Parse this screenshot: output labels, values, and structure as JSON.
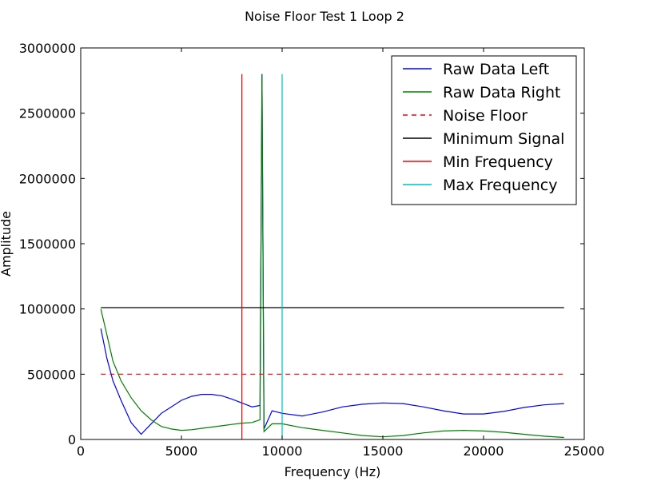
{
  "chart_data": {
    "type": "line",
    "title": "Noise Floor Test 1 Loop 2",
    "xlabel": "Frequency (Hz)",
    "ylabel": "Amplitude",
    "xlim": [
      0,
      25000
    ],
    "ylim": [
      0,
      3000000
    ],
    "xticks": [
      0,
      5000,
      10000,
      15000,
      20000,
      25000
    ],
    "xtick_labels": [
      "0",
      "5000",
      "10000",
      "15000",
      "20000",
      "25000"
    ],
    "yticks": [
      0,
      500000,
      1000000,
      1500000,
      2000000,
      2500000,
      3000000
    ],
    "ytick_labels": [
      "0",
      "500000",
      "1000000",
      "1500000",
      "2000000",
      "2500000",
      "3000000"
    ],
    "grid": false,
    "legend_position": "top-right",
    "series": [
      {
        "name": "Raw Data Left",
        "color": "#0000ff",
        "style": "solid",
        "x": [
          1000,
          1300,
          1600,
          2000,
          2500,
          3000,
          3500,
          4000,
          4500,
          5000,
          5500,
          6000,
          6500,
          7000,
          7500,
          8000,
          8500,
          8900,
          9000,
          9100,
          9500,
          10000,
          11000,
          12000,
          13000,
          14000,
          15000,
          16000,
          17000,
          18000,
          19000,
          20000,
          21000,
          22000,
          23000,
          24000
        ],
        "y": [
          850000,
          620000,
          450000,
          300000,
          130000,
          40000,
          120000,
          200000,
          250000,
          300000,
          330000,
          345000,
          345000,
          335000,
          310000,
          280000,
          250000,
          260000,
          2800000,
          80000,
          220000,
          200000,
          180000,
          210000,
          250000,
          270000,
          280000,
          275000,
          250000,
          220000,
          195000,
          195000,
          215000,
          245000,
          265000,
          275000
        ]
      },
      {
        "name": "Raw Data Right",
        "color": "#008000",
        "style": "solid",
        "x": [
          1000,
          1300,
          1600,
          2000,
          2500,
          3000,
          3500,
          4000,
          4500,
          5000,
          5500,
          6000,
          6500,
          7000,
          7500,
          8000,
          8500,
          8900,
          9000,
          9100,
          9500,
          10000,
          11000,
          12000,
          13000,
          14000,
          15000,
          16000,
          17000,
          18000,
          19000,
          20000,
          21000,
          22000,
          23000,
          24000
        ],
        "y": [
          1000000,
          800000,
          600000,
          450000,
          320000,
          220000,
          150000,
          100000,
          80000,
          70000,
          75000,
          85000,
          95000,
          105000,
          115000,
          125000,
          130000,
          150000,
          2800000,
          60000,
          120000,
          120000,
          90000,
          70000,
          50000,
          30000,
          20000,
          30000,
          50000,
          65000,
          70000,
          65000,
          55000,
          40000,
          25000,
          15000
        ]
      },
      {
        "name": "Noise Floor",
        "color": "#ff0000",
        "style": "dashed",
        "x": [
          1000,
          24000
        ],
        "y": [
          500000,
          500000
        ]
      },
      {
        "name": "Minimum Signal",
        "color": "#000000",
        "style": "solid",
        "x": [
          1000,
          24000
        ],
        "y": [
          1010000,
          1010000
        ]
      },
      {
        "name": "Min Frequency",
        "color": "#ff0000",
        "style": "solid",
        "x": [
          8000,
          8000
        ],
        "y": [
          0,
          2800000
        ]
      },
      {
        "name": "Max Frequency",
        "color": "#00bfbf",
        "style": "solid",
        "x": [
          10000,
          10000
        ],
        "y": [
          0,
          2800000
        ]
      }
    ]
  }
}
